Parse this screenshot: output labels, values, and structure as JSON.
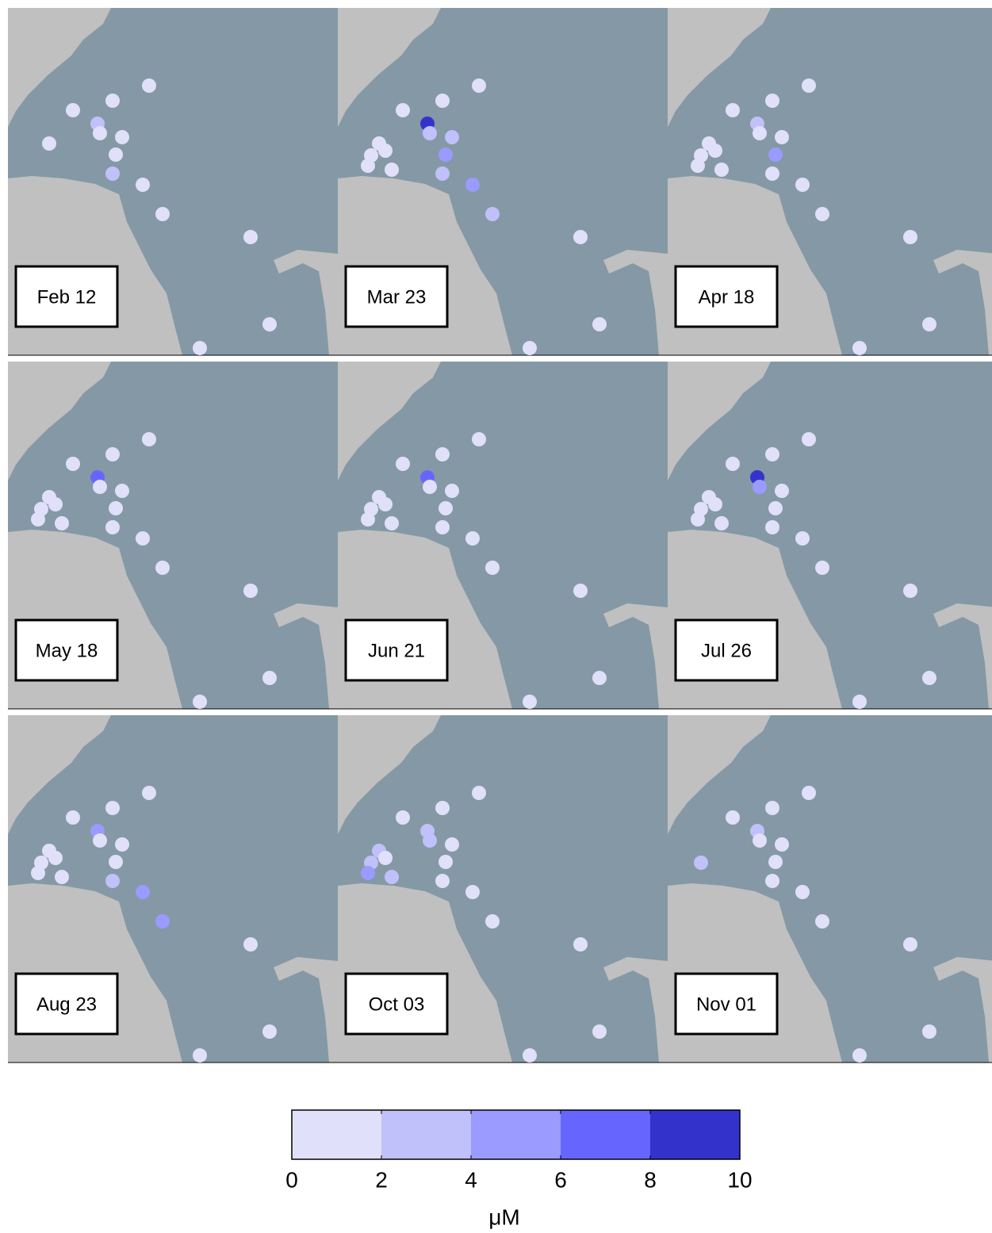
{
  "panels": [
    {
      "label": "Feb 12",
      "values": [
        1,
        1,
        1,
        3,
        1,
        1,
        1,
        3,
        1,
        1,
        1,
        1,
        1,
        1,
        null,
        null,
        null,
        null
      ]
    },
    {
      "label": "Mar 23",
      "values": [
        1,
        1,
        1,
        9,
        3,
        3,
        5,
        3,
        5,
        3,
        1,
        1,
        1,
        1,
        1,
        1,
        1,
        1
      ]
    },
    {
      "label": "Apr 18",
      "values": [
        1,
        1,
        1,
        3,
        1,
        1,
        5,
        1,
        1,
        1,
        1,
        1,
        1,
        1,
        1,
        1,
        1,
        1
      ]
    },
    {
      "label": "May 18",
      "values": [
        1,
        1,
        1,
        7,
        1,
        1,
        1,
        1,
        1,
        1,
        1,
        1,
        1,
        1,
        1,
        1,
        1,
        1
      ]
    },
    {
      "label": "Jun 21",
      "values": [
        1,
        1,
        1,
        7,
        1,
        1,
        1,
        1,
        1,
        1,
        1,
        1,
        1,
        1,
        1,
        1,
        1,
        1
      ]
    },
    {
      "label": "Jul 26",
      "values": [
        1,
        1,
        1,
        9,
        5,
        1,
        1,
        1,
        1,
        1,
        1,
        1,
        1,
        1,
        1,
        1,
        1,
        1
      ]
    },
    {
      "label": "Aug 23",
      "values": [
        1,
        1,
        1,
        5,
        1,
        1,
        1,
        3,
        5,
        5,
        1,
        1,
        1,
        1,
        1,
        1,
        1,
        1
      ]
    },
    {
      "label": "Oct 03",
      "values": [
        1,
        1,
        1,
        3,
        3,
        1,
        1,
        1,
        1,
        1,
        1,
        1,
        1,
        3,
        3,
        1,
        5,
        3
      ]
    },
    {
      "label": "Nov 01",
      "values": [
        1,
        1,
        1,
        3,
        1,
        1,
        1,
        1,
        1,
        1,
        1,
        1,
        1,
        null,
        3,
        null,
        null,
        null
      ]
    }
  ],
  "colorbar": {
    "ticks": [
      0,
      2,
      4,
      6,
      8,
      10
    ],
    "colors": [
      "#e0e0fa",
      "#c0c0fa",
      "#9a9aff",
      "#6666ff",
      "#3333cc"
    ],
    "label": "μM"
  }
}
